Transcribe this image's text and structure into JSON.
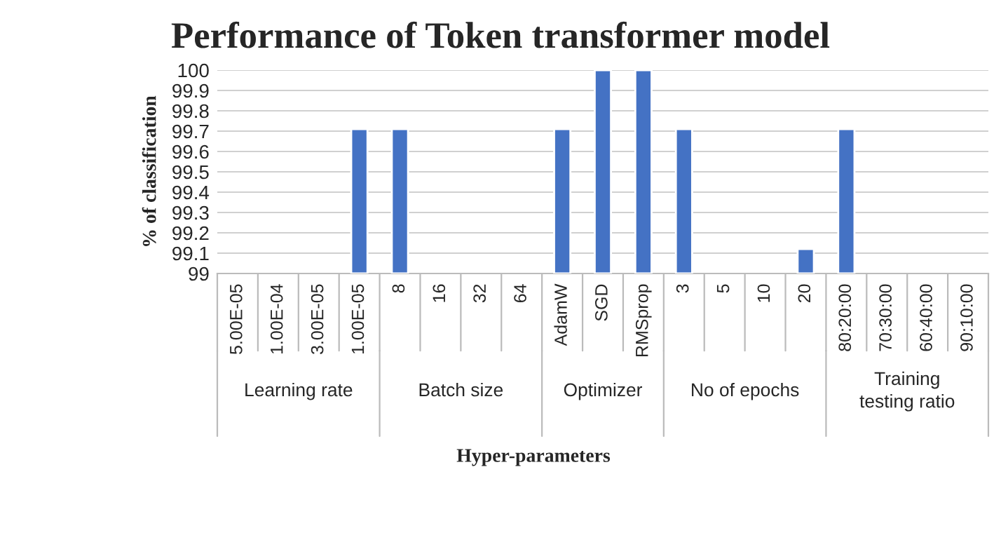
{
  "chart_data": {
    "type": "bar",
    "title": "Performance of Token transformer model",
    "xlabel": "Hyper-parameters",
    "ylabel": "% of classification",
    "categories": [
      "5.00E-05",
      "1.00E-04",
      "3.00E-05",
      "1.00E-05",
      "8",
      "16",
      "32",
      "64",
      "AdamW",
      "SGD",
      "RMSprop",
      "3",
      "5",
      "10",
      "20",
      "80:20:00",
      "70:30:00",
      "60:40:00",
      "90:10:00"
    ],
    "series": [
      {
        "color": "#4472c4",
        "values": [
          null,
          null,
          null,
          99.71,
          99.71,
          null,
          null,
          null,
          99.71,
          100,
          100,
          99.71,
          null,
          null,
          99.12,
          99.71,
          null,
          null,
          null
        ]
      }
    ],
    "annotations": [
      "Learning rate",
      "Batch size",
      "Optimizer",
      "No of epochs",
      "Training testing ratio"
    ],
    "ylim": [
      99,
      100
    ],
    "yticks": [
      99,
      99.1,
      99.2,
      99.3,
      99.4,
      99.5,
      99.6,
      99.7,
      99.8,
      99.9,
      100
    ],
    "grid": "y"
  }
}
